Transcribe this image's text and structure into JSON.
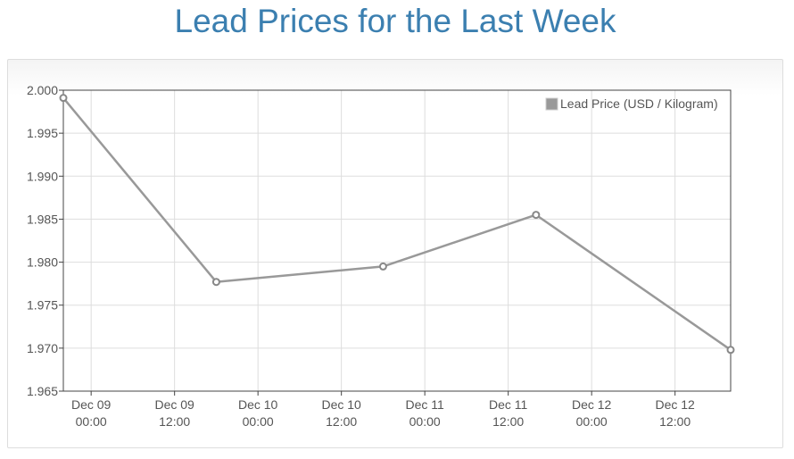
{
  "title": "Lead Prices for the Last Week",
  "chart_data": {
    "type": "line",
    "title": "Lead Prices for the Last Week",
    "xlabel": "",
    "ylabel": "",
    "x_ticks": [
      [
        "Dec 09",
        "00:00"
      ],
      [
        "Dec 09",
        "12:00"
      ],
      [
        "Dec 10",
        "00:00"
      ],
      [
        "Dec 10",
        "12:00"
      ],
      [
        "Dec 11",
        "00:00"
      ],
      [
        "Dec 11",
        "12:00"
      ],
      [
        "Dec 12",
        "00:00"
      ],
      [
        "Dec 12",
        "12:00"
      ]
    ],
    "y_ticks": [
      "2.000",
      "1.995",
      "1.990",
      "1.985",
      "1.980",
      "1.975",
      "1.970",
      "1.965"
    ],
    "ylim": [
      1.965,
      2.0
    ],
    "xlim": [
      "Dec 08 20:00",
      "Dec 12 20:00"
    ],
    "grid": true,
    "legend_position": "top-right",
    "series": [
      {
        "name": "Lead Price (USD / Kilogram)",
        "color": "#999999",
        "x": [
          "Dec 08 20:00",
          "Dec 09 18:00",
          "Dec 10 18:00",
          "Dec 11 16:00",
          "Dec 12 20:00"
        ],
        "values": [
          1.9991,
          1.9777,
          1.9795,
          1.9855,
          1.9698
        ]
      }
    ]
  }
}
